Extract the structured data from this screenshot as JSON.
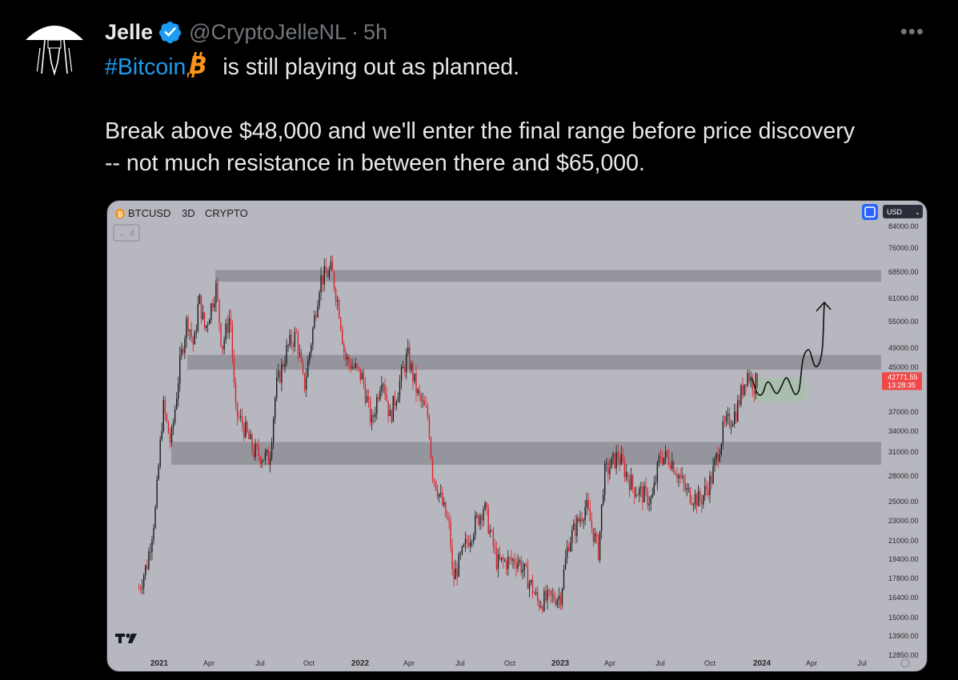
{
  "tweet": {
    "author_name": "Jelle",
    "handle": "@CryptoJelleNL",
    "separator": "·",
    "time": "5h",
    "more_label": "•••",
    "hashtag": "#Bitcoin",
    "line1_rest": "is still playing out as planned.",
    "paragraph2_line1": "Break above $48,000 and we'll enter the final range before price discovery",
    "paragraph2_line2": "-- not much resistance in between there and $65,000."
  },
  "colors": {
    "background": "#000000",
    "text": "#e7e9ea",
    "secondary": "#71767b",
    "link": "#1d9bf0",
    "verified": "#1d9bf0",
    "bitcoin": "#f7931a",
    "chart_bg": "#b6b7bf",
    "zone": "#8f9096",
    "candle_up": "#1c1c1c",
    "candle_down": "#d8232a",
    "price_tag": "#f04848"
  },
  "icons": {
    "verified": "verified-badge-icon",
    "bitcoin": "bitcoin-emoji-icon",
    "more": "more-horizontal-icon",
    "tradingview": "tradingview-logo",
    "fullscreen": "fullscreen-icon"
  },
  "chart_data": {
    "type": "candlestick",
    "symbol": "BTCUSD",
    "interval": "3D",
    "exchange": "CRYPTO",
    "indicator_count": "4",
    "currency_label": "USD",
    "y_scale": "log",
    "y_tick_labels": [
      "84000.00",
      "76000.00",
      "68500.00",
      "61000.00",
      "55000.00",
      "49000.00",
      "45000.00",
      "37000.00",
      "34000.00",
      "31000.00",
      "28000.00",
      "25000.00",
      "23000.00",
      "21000.00",
      "19400.00",
      "17800.00",
      "16400.00",
      "15000.00",
      "13900.00",
      "12850.00"
    ],
    "x_tick_labels": [
      "2021",
      "Apr",
      "Jul",
      "Oct",
      "2022",
      "Apr",
      "Jul",
      "Oct",
      "2023",
      "Apr",
      "Jul",
      "Oct",
      "2024",
      "Apr",
      "Jul"
    ],
    "last_price": "42771.55",
    "countdown": "13:28:35",
    "resistance_zones": [
      [
        65500,
        69000
      ],
      [
        44500,
        47500
      ],
      [
        29300,
        32400
      ]
    ],
    "projection_box": [
      38800,
      43000
    ],
    "price_path": [
      [
        "2020-11-25",
        17000
      ],
      [
        "2020-12-10",
        19000
      ],
      [
        "2020-12-25",
        24000
      ],
      [
        "2021-01-08",
        38000
      ],
      [
        "2021-01-22",
        32000
      ],
      [
        "2021-02-08",
        46000
      ],
      [
        "2021-02-21",
        56000
      ],
      [
        "2021-03-05",
        49000
      ],
      [
        "2021-03-14",
        61000
      ],
      [
        "2021-03-25",
        53000
      ],
      [
        "2021-04-14",
        64000
      ],
      [
        "2021-04-25",
        49000
      ],
      [
        "2021-05-10",
        57000
      ],
      [
        "2021-05-19",
        37000
      ],
      [
        "2021-06-01",
        35000
      ],
      [
        "2021-06-22",
        31000
      ],
      [
        "2021-07-20",
        30000
      ],
      [
        "2021-08-01",
        41000
      ],
      [
        "2021-08-22",
        49000
      ],
      [
        "2021-09-07",
        52000
      ],
      [
        "2021-09-21",
        41000
      ],
      [
        "2021-10-01",
        48000
      ],
      [
        "2021-10-20",
        66000
      ],
      [
        "2021-11-10",
        69000
      ],
      [
        "2021-11-25",
        57000
      ],
      [
        "2021-12-04",
        47000
      ],
      [
        "2022-01-05",
        43000
      ],
      [
        "2022-01-22",
        35000
      ],
      [
        "2022-02-10",
        44000
      ],
      [
        "2022-02-24",
        36000
      ],
      [
        "2022-03-28",
        47500
      ],
      [
        "2022-04-15",
        40000
      ],
      [
        "2022-05-05",
        36000
      ],
      [
        "2022-05-12",
        28500
      ],
      [
        "2022-06-13",
        22000
      ],
      [
        "2022-06-18",
        17600
      ],
      [
        "2022-07-15",
        21000
      ],
      [
        "2022-08-14",
        24500
      ],
      [
        "2022-09-07",
        19000
      ],
      [
        "2022-10-15",
        19300
      ],
      [
        "2022-11-08",
        17200
      ],
      [
        "2022-11-20",
        16000
      ],
      [
        "2022-12-31",
        16500
      ],
      [
        "2023-01-14",
        20800
      ],
      [
        "2023-02-15",
        24500
      ],
      [
        "2023-03-10",
        20000
      ],
      [
        "2023-03-20",
        28000
      ],
      [
        "2023-04-14",
        30500
      ],
      [
        "2023-05-12",
        26500
      ],
      [
        "2023-06-15",
        25000
      ],
      [
        "2023-06-30",
        30500
      ],
      [
        "2023-07-20",
        30000
      ],
      [
        "2023-08-17",
        26000
      ],
      [
        "2023-09-11",
        25000
      ],
      [
        "2023-10-01",
        27500
      ],
      [
        "2023-10-24",
        34500
      ],
      [
        "2023-11-15",
        37000
      ],
      [
        "2023-12-05",
        44000
      ],
      [
        "2023-12-18",
        41500
      ],
      [
        "2023-12-26",
        42771
      ]
    ]
  }
}
